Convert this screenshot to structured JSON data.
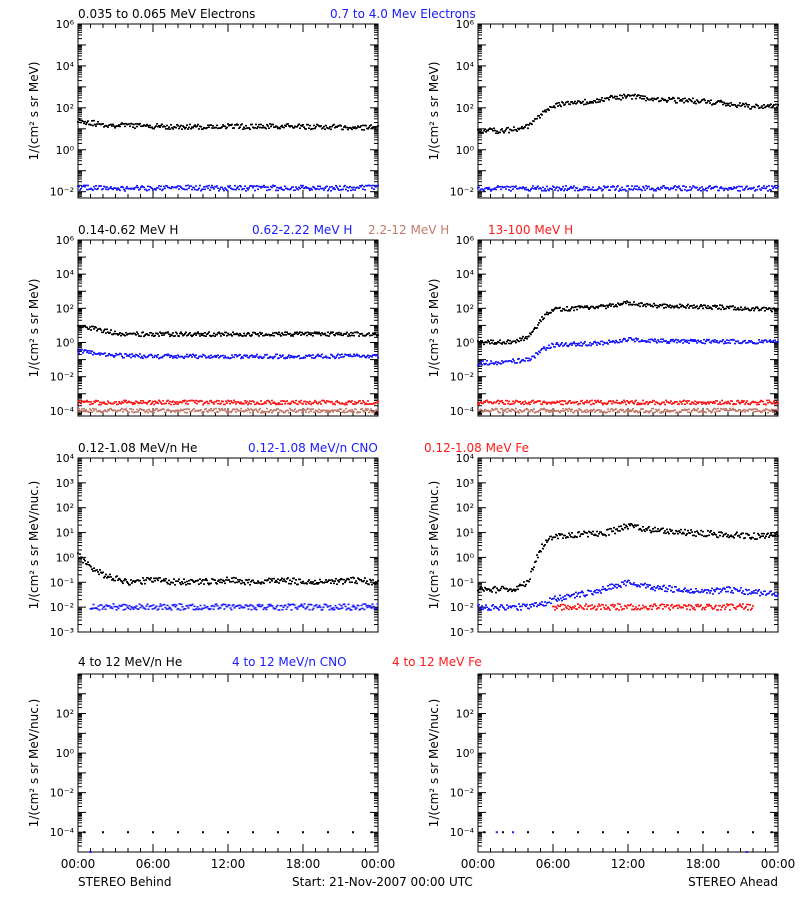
{
  "colors": {
    "black": "#000000",
    "blue": "#1a1aff",
    "salmon": "#c47a6a",
    "red": "#ff1a1a"
  },
  "footer": {
    "left": "STEREO Behind",
    "center": "Start: 21-Nov-2007 00:00 UTC",
    "right": "STEREO Ahead"
  },
  "x_ticks": [
    "00:00",
    "06:00",
    "12:00",
    "18:00",
    "00:00"
  ],
  "chart_data": [
    {
      "type": "scatter",
      "row": "electrons",
      "legend": [
        {
          "text": "0.035 to 0.065 MeV Electrons",
          "color": "black"
        },
        {
          "text": "0.7 to 4.0 Mev Electrons",
          "color": "blue"
        }
      ],
      "ylabel": "1/(cm² s sr MeV)",
      "log_y": true,
      "ylim": [
        0.005,
        1000000
      ],
      "y_ticks": [
        "10⁻²",
        "10⁰",
        "10²",
        "10⁴",
        "10⁶"
      ],
      "y_tick_exponents": [
        -2,
        0,
        2,
        4,
        6
      ],
      "xlim_hours": [
        0,
        24
      ],
      "panels": [
        {
          "spacecraft": "STEREO Behind",
          "series": [
            {
              "color": "black",
              "x_hours": [
                0,
                2,
                4,
                6,
                8,
                10,
                12,
                14,
                16,
                18,
                20,
                22,
                24
              ],
              "y": [
                25,
                15,
                14,
                13,
                12,
                12,
                13,
                12,
                13,
                12,
                12,
                11,
                12
              ]
            },
            {
              "color": "blue",
              "x_hours": [
                0,
                4,
                8,
                12,
                16,
                20,
                24
              ],
              "y": [
                0.015,
                0.014,
                0.015,
                0.014,
                0.015,
                0.014,
                0.015
              ]
            }
          ]
        },
        {
          "spacecraft": "STEREO Ahead",
          "series": [
            {
              "color": "black",
              "x_hours": [
                0,
                2,
                3,
                4,
                5,
                6,
                7,
                8,
                10,
                12,
                14,
                16,
                18,
                20,
                22,
                24
              ],
              "y": [
                8,
                8,
                9,
                12,
                40,
                120,
                150,
                170,
                250,
                350,
                250,
                220,
                200,
                150,
                110,
                130
              ]
            },
            {
              "color": "blue",
              "x_hours": [
                0,
                4,
                8,
                12,
                16,
                20,
                24
              ],
              "y": [
                0.014,
                0.014,
                0.014,
                0.014,
                0.014,
                0.014,
                0.014
              ]
            }
          ]
        }
      ]
    },
    {
      "type": "scatter",
      "row": "protons",
      "legend": [
        {
          "text": "0.14-0.62 MeV H",
          "color": "black"
        },
        {
          "text": "0.62-2.22 MeV H",
          "color": "blue"
        },
        {
          "text": "2.2-12 MeV H",
          "color": "salmon"
        },
        {
          "text": "13-100 MeV H",
          "color": "red"
        }
      ],
      "ylabel": "1/(cm² s sr MeV)",
      "log_y": true,
      "ylim": [
        5e-05,
        1000000
      ],
      "y_ticks": [
        "10⁻⁴",
        "10⁻²",
        "10⁰",
        "10²",
        "10⁴",
        "10⁶"
      ],
      "y_tick_exponents": [
        -4,
        -2,
        0,
        2,
        4,
        6
      ],
      "xlim_hours": [
        0,
        24
      ],
      "panels": [
        {
          "spacecraft": "STEREO Behind",
          "series": [
            {
              "color": "black",
              "x_hours": [
                0,
                1,
                2,
                3,
                4,
                6,
                8,
                10,
                12,
                14,
                16,
                18,
                20,
                22,
                24
              ],
              "y": [
                10,
                7,
                5,
                3.5,
                3,
                3,
                3,
                3,
                3,
                3,
                3,
                3,
                3,
                3,
                3
              ]
            },
            {
              "color": "blue",
              "x_hours": [
                0,
                1,
                2,
                3,
                4,
                6,
                8,
                12,
                16,
                20,
                24
              ],
              "y": [
                0.3,
                0.25,
                0.2,
                0.17,
                0.16,
                0.15,
                0.15,
                0.15,
                0.15,
                0.15,
                0.15
              ]
            },
            {
              "color": "salmon",
              "x_hours": [
                0,
                4,
                8,
                12,
                16,
                20,
                24
              ],
              "y": [
                0.0001,
                0.0001,
                0.0001,
                0.0001,
                0.0001,
                0.0001,
                0.0001
              ]
            },
            {
              "color": "red",
              "x_hours": [
                0,
                4,
                8,
                12,
                16,
                20,
                24
              ],
              "y": [
                0.0003,
                0.0003,
                0.0003,
                0.0003,
                0.0003,
                0.0003,
                0.0003
              ]
            }
          ]
        },
        {
          "spacecraft": "STEREO Ahead",
          "series": [
            {
              "color": "black",
              "x_hours": [
                0,
                2,
                3,
                4,
                4.5,
                5,
                5.5,
                6,
                8,
                10,
                12,
                14,
                16,
                18,
                20,
                22,
                24
              ],
              "y": [
                1,
                1,
                1.2,
                2,
                5,
                20,
                50,
                80,
                100,
                120,
                200,
                140,
                130,
                120,
                110,
                90,
                80
              ]
            },
            {
              "color": "blue",
              "x_hours": [
                0,
                2,
                3,
                4,
                4.5,
                5,
                5.5,
                6,
                8,
                10,
                12,
                14,
                16,
                18,
                20,
                22,
                24
              ],
              "y": [
                0.06,
                0.07,
                0.08,
                0.1,
                0.15,
                0.3,
                0.5,
                0.7,
                0.8,
                0.9,
                1.5,
                1.2,
                1.1,
                1.1,
                1.1,
                1.1,
                1
              ]
            },
            {
              "color": "salmon",
              "x_hours": [
                0,
                4,
                8,
                12,
                16,
                20,
                24
              ],
              "y": [
                0.0001,
                0.0001,
                0.0001,
                0.0001,
                0.0001,
                0.0001,
                0.0001
              ]
            },
            {
              "color": "red",
              "x_hours": [
                0,
                4,
                8,
                12,
                16,
                20,
                24
              ],
              "y": [
                0.0003,
                0.0003,
                0.0003,
                0.0003,
                0.0003,
                0.0003,
                0.0003
              ]
            }
          ]
        }
      ]
    },
    {
      "type": "scatter",
      "row": "heavy_ions_low",
      "legend": [
        {
          "text": "0.12-1.08 MeV/n He",
          "color": "black"
        },
        {
          "text": "0.12-1.08 MeV/n CNO",
          "color": "blue"
        },
        {
          "text": "0.12-1.08 MeV Fe",
          "color": "red"
        }
      ],
      "ylabel": "1/(cm² s sr MeV/nuc.)",
      "log_y": true,
      "ylim": [
        0.001,
        10000
      ],
      "y_ticks": [
        "10⁻³",
        "10⁻²",
        "10⁻¹",
        "10⁰",
        "10¹",
        "10²",
        "10³",
        "10⁴"
      ],
      "y_tick_exponents": [
        -3,
        -2,
        -1,
        0,
        1,
        2,
        3,
        4
      ],
      "xlim_hours": [
        0,
        24
      ],
      "panels": [
        {
          "spacecraft": "STEREO Behind",
          "series": [
            {
              "color": "black",
              "x_hours": [
                0,
                0.5,
                1,
                1.5,
                2,
                3,
                4,
                6,
                8,
                10,
                12,
                14,
                16,
                18,
                20,
                22,
                24
              ],
              "y": [
                1.2,
                0.7,
                0.4,
                0.3,
                0.2,
                0.15,
                0.1,
                0.12,
                0.1,
                0.1,
                0.12,
                0.1,
                0.12,
                0.1,
                0.1,
                0.12,
                0.1
              ]
            },
            {
              "color": "blue",
              "x_hours": [
                1,
                4,
                8,
                12,
                16,
                20,
                24
              ],
              "y": [
                0.01,
                0.01,
                0.01,
                0.01,
                0.01,
                0.01,
                0.01
              ]
            }
          ]
        },
        {
          "spacecraft": "STEREO Ahead",
          "series": [
            {
              "color": "black",
              "x_hours": [
                0,
                2,
                3,
                4,
                4.5,
                5,
                5.5,
                6,
                8,
                10,
                11,
                12,
                13,
                14,
                16,
                18,
                20,
                22,
                24
              ],
              "y": [
                0.05,
                0.05,
                0.05,
                0.1,
                0.5,
                2,
                5,
                7,
                8,
                9,
                12,
                18,
                15,
                12,
                10,
                9,
                8,
                7,
                8
              ]
            },
            {
              "color": "blue",
              "x_hours": [
                0,
                4,
                5,
                6,
                8,
                10,
                12,
                14,
                16,
                18,
                20,
                22,
                24
              ],
              "y": [
                0.01,
                0.01,
                0.012,
                0.02,
                0.03,
                0.05,
                0.1,
                0.06,
                0.05,
                0.04,
                0.05,
                0.04,
                0.03
              ]
            },
            {
              "color": "red",
              "x_hours": [
                6,
                10,
                14,
                18,
                22
              ],
              "y": [
                0.01,
                0.01,
                0.01,
                0.01,
                0.01
              ]
            }
          ]
        }
      ]
    },
    {
      "type": "scatter",
      "row": "heavy_ions_high",
      "legend": [
        {
          "text": "4 to 12 MeV/n He",
          "color": "black"
        },
        {
          "text": "4 to 12 MeV/n CNO",
          "color": "blue"
        },
        {
          "text": "4 to 12 MeV Fe",
          "color": "red"
        }
      ],
      "ylabel": "1/(cm² s sr MeV/nuc.)",
      "log_y": true,
      "ylim": [
        1e-05,
        10000
      ],
      "y_ticks": [
        "10⁻⁴",
        "10⁻²",
        "10⁰",
        "10²"
      ],
      "y_tick_exponents": [
        -4,
        -2,
        0,
        2
      ],
      "xlim_hours": [
        0,
        24
      ],
      "panels": [
        {
          "spacecraft": "STEREO Behind",
          "series": [
            {
              "color": "black",
              "x_hours": [
                0.5,
                2,
                4,
                6,
                8,
                10,
                12,
                14,
                16,
                18,
                20,
                22,
                23.5
              ],
              "y": [
                0.0001,
                0.0001,
                0.0001,
                0.0001,
                0.0001,
                0.0001,
                0.0001,
                0.0001,
                0.0001,
                0.0001,
                0.0001,
                0.0001,
                0.0001
              ]
            },
            {
              "color": "blue",
              "x_hours": [
                1
              ],
              "y": [
                1e-05
              ]
            }
          ]
        },
        {
          "spacecraft": "STEREO Ahead",
          "series": [
            {
              "color": "black",
              "x_hours": [
                0.5,
                2,
                4,
                6,
                8,
                10,
                12,
                14,
                16,
                18,
                20,
                22,
                23.5
              ],
              "y": [
                0.0001,
                0.0001,
                0.0001,
                0.0001,
                0.0001,
                0.0001,
                0.0001,
                0.0001,
                0.0001,
                0.0001,
                0.0001,
                0.0001,
                0.0001
              ]
            },
            {
              "color": "blue",
              "x_hours": [
                1.5,
                2.8,
                21.5
              ],
              "y": [
                0.0001,
                0.0001,
                1e-05
              ]
            }
          ]
        }
      ]
    }
  ]
}
